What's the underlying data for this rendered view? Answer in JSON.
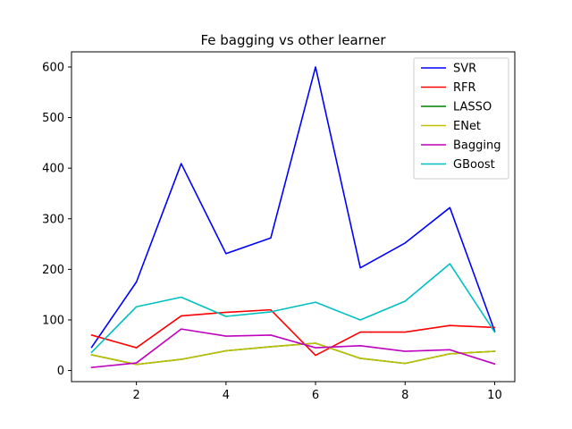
{
  "chart_data": {
    "type": "line",
    "title": "Fe bagging vs other learner",
    "xlabel": "",
    "ylabel": "",
    "x": [
      1,
      2,
      3,
      4,
      5,
      6,
      7,
      8,
      9,
      10
    ],
    "xlim": [
      0.55,
      10.45
    ],
    "ylim": [
      -22,
      630
    ],
    "xticks": [
      2,
      4,
      6,
      8,
      10
    ],
    "yticks": [
      0,
      100,
      200,
      300,
      400,
      500,
      600
    ],
    "grid": false,
    "legend_position": "top-right",
    "series": [
      {
        "name": "SVR",
        "color": "#0000ff",
        "values": [
          46,
          175,
          409,
          231,
          262,
          600,
          203,
          252,
          322,
          78
        ]
      },
      {
        "name": "RFR",
        "color": "#ff0000",
        "values": [
          70,
          45,
          108,
          115,
          120,
          30,
          76,
          76,
          89,
          85
        ]
      },
      {
        "name": "LASSO",
        "color": "#008000",
        "values": [
          31,
          12,
          22,
          39,
          47,
          54,
          24,
          14,
          33,
          38
        ]
      },
      {
        "name": "ENet",
        "color": "#bfbf00",
        "values": [
          31,
          12,
          22,
          39,
          47,
          54,
          24,
          14,
          33,
          38
        ]
      },
      {
        "name": "Bagging",
        "color": "#bf00bf",
        "values": [
          6,
          15,
          82,
          68,
          70,
          45,
          49,
          38,
          41,
          13
        ]
      },
      {
        "name": "GBoost",
        "color": "#00bfbf",
        "values": [
          36,
          126,
          145,
          107,
          116,
          135,
          100,
          137,
          211,
          76
        ]
      }
    ]
  }
}
